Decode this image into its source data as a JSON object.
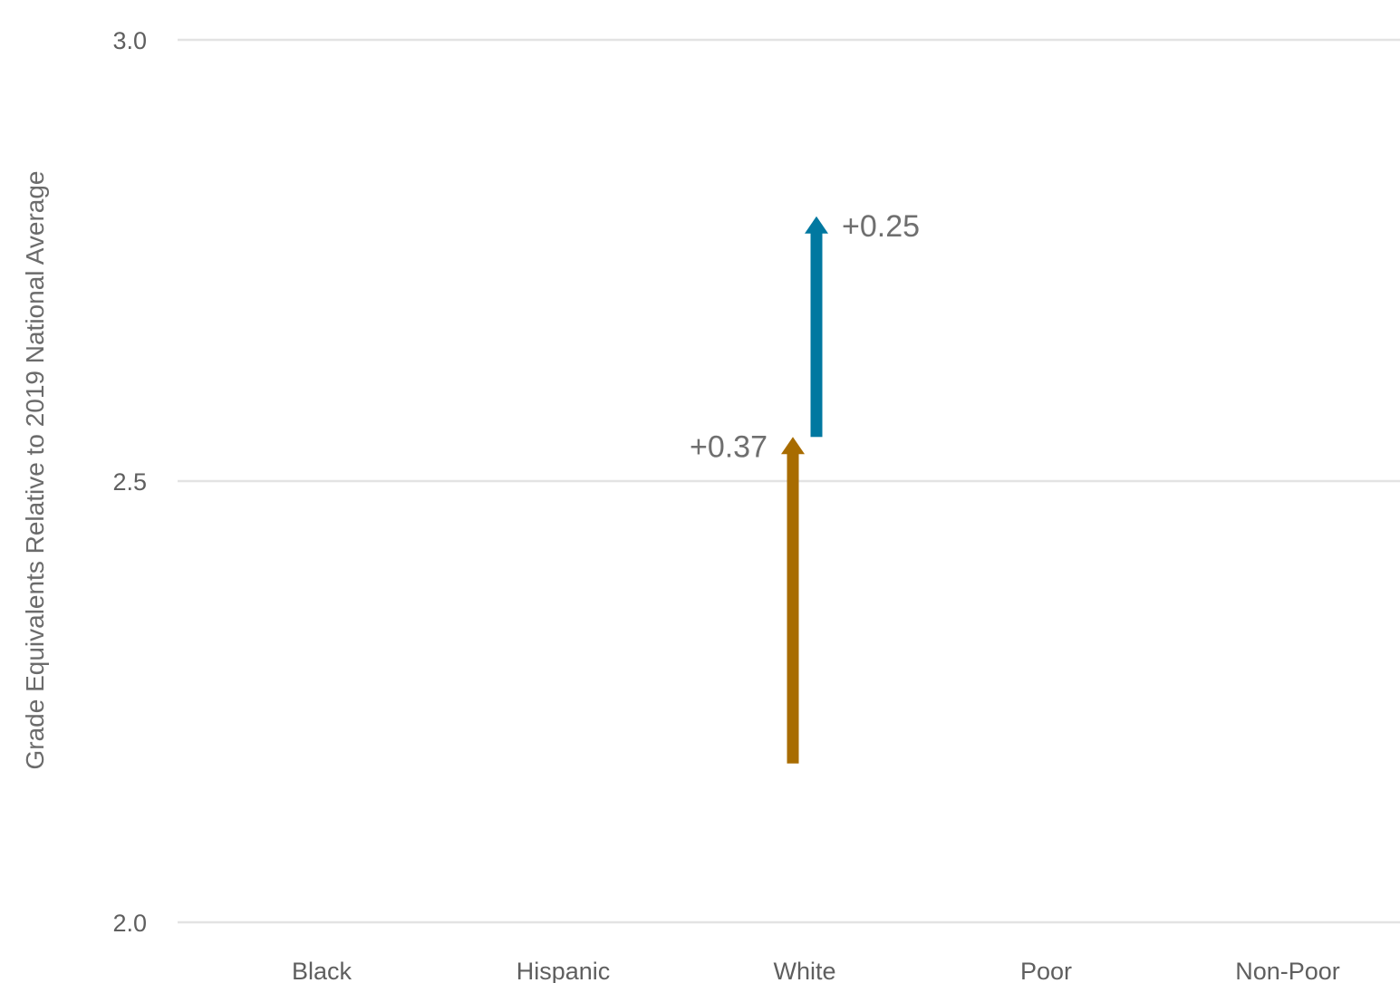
{
  "chart_data": {
    "type": "arrow",
    "ylabel": "Grade Equivalents Relative to 2019 National Average",
    "ylim": [
      2.0,
      3.0
    ],
    "yticks": [
      "2.0",
      "2.5",
      "3.0"
    ],
    "categories": [
      "Black",
      "Hispanic",
      "White",
      "Poor",
      "Non-Poor"
    ],
    "grid": true,
    "series": [
      {
        "color": "#a86c00",
        "arrows": [
          {
            "category": "White",
            "from": 2.18,
            "to": 2.55,
            "label": "+0.37"
          }
        ]
      },
      {
        "color": "#0078a0",
        "arrows": [
          {
            "category": "White",
            "from": 2.55,
            "to": 2.8,
            "label": "+0.25"
          }
        ]
      }
    ]
  }
}
